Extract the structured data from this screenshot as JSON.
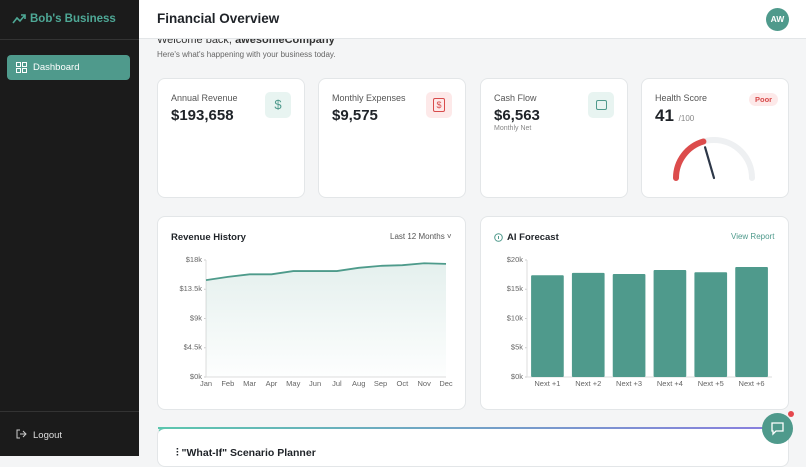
{
  "sidebar": {
    "brand": "Bob's Business",
    "nav": [
      "Dashboard"
    ],
    "logout": "Logout"
  },
  "header": {
    "title": "Financial Overview",
    "avatar": "AW"
  },
  "welcome": {
    "greeting": "Welcome back,",
    "name": "awesomeCompany",
    "subtitle": "Here's what's happening with your business today."
  },
  "cards": [
    {
      "label": "Annual Revenue",
      "value": "$193,658"
    },
    {
      "label": "Monthly Expenses",
      "value": "$9,575"
    },
    {
      "label": "Cash Flow",
      "value": "$6,563",
      "note": "Monthly Net"
    }
  ],
  "health": {
    "label": "Health Score",
    "score": 41,
    "score_max": {
      "value": 100,
      "label": "/100"
    },
    "status": "Poor"
  },
  "chart_data": [
    {
      "type": "line",
      "title": "Revenue History",
      "filter": "Last 12 Months",
      "categories": [
        "Jan",
        "Feb",
        "Mar",
        "Apr",
        "May",
        "Jun",
        "Jul",
        "Aug",
        "Sep",
        "Oct",
        "Nov",
        "Dec"
      ],
      "values": [
        14900,
        15400,
        15800,
        15800,
        16300,
        16300,
        16300,
        16800,
        17100,
        17200,
        17500,
        17400
      ],
      "color": "#4e9b8b",
      "ylim": [
        0,
        18000
      ],
      "yticks": [
        {
          "value": 0,
          "label": "$0k"
        },
        {
          "value": 4500,
          "label": "$4.5k"
        },
        {
          "value": 9000,
          "label": "$9k"
        },
        {
          "value": 13500,
          "label": "$13.5k"
        },
        {
          "value": 18000,
          "label": "$18k"
        }
      ]
    },
    {
      "type": "bar",
      "title": "AI Forecast",
      "action": "View Report",
      "categories": [
        "Next +1",
        "Next +2",
        "Next +3",
        "Next +4",
        "Next +5",
        "Next +6"
      ],
      "values": [
        17400,
        17800,
        17600,
        18300,
        17900,
        18800
      ],
      "color": "#4f9a8c",
      "ylim": [
        0,
        20000
      ],
      "yticks": [
        {
          "value": 0,
          "label": "$0k"
        },
        {
          "value": 5000,
          "label": "$5k"
        },
        {
          "value": 10000,
          "label": "$10k"
        },
        {
          "value": 15000,
          "label": "$15k"
        },
        {
          "value": 20000,
          "label": "$20k"
        }
      ]
    }
  ],
  "planner": {
    "title": "\"What-If\" Scenario Planner"
  }
}
